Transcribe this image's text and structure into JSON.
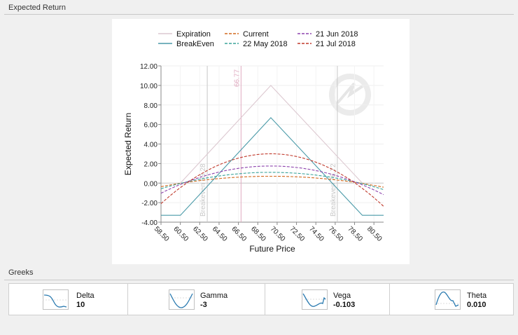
{
  "sections": {
    "expected_return": "Expected Return",
    "greeks": "Greeks"
  },
  "chart_data": {
    "type": "line",
    "xlabel": "Future Price",
    "ylabel": "Expected Return",
    "xlim": [
      58.5,
      81.5
    ],
    "ylim": [
      -4,
      12
    ],
    "x_ticks": [
      "58.50",
      "60.50",
      "62.50",
      "64.50",
      "66.50",
      "68.50",
      "70.50",
      "72.50",
      "74.50",
      "76.50",
      "78.50",
      "80.50"
    ],
    "y_ticks": [
      "12.00",
      "10.00",
      "8.00",
      "6.00",
      "4.00",
      "2.00",
      "0.00",
      "-2.00",
      "-4.00"
    ],
    "legend_position": "top",
    "series": [
      {
        "name": "Expiration",
        "color": "#dcc8d0",
        "dash": false,
        "points": [
          [
            60.5,
            0
          ],
          [
            69.85,
            10
          ],
          [
            79.3,
            0
          ]
        ]
      },
      {
        "name": "BreakEven",
        "color": "#4a9aa8",
        "dash": false,
        "points": [
          [
            58.5,
            -3.3
          ],
          [
            60.5,
            -3.3
          ],
          [
            69.85,
            6.7
          ],
          [
            79.3,
            -3.3
          ],
          [
            81.5,
            -3.3
          ]
        ]
      },
      {
        "name": "Current",
        "color": "#d2691e",
        "dash": true,
        "peak": 0.7,
        "center": 69.85,
        "width": 9.2
      },
      {
        "name": "22 May 2018",
        "color": "#3aa39a",
        "dash": true,
        "peak": 1.1,
        "center": 69.85,
        "width": 9.2
      },
      {
        "name": "21 Jun 2018",
        "color": "#8e44ad",
        "dash": true,
        "peak": 1.75,
        "center": 69.85,
        "width": 9.0
      },
      {
        "name": "21 Jul 2018",
        "color": "#c0392b",
        "dash": true,
        "peak": 3.0,
        "center": 69.85,
        "width": 8.7
      }
    ],
    "annotations": [
      {
        "label": "66.77",
        "x": 66.77,
        "color": "#e0aac0"
      },
      {
        "label": "Breakeven 63.28",
        "x": 63.28,
        "color": "#c8c8c8"
      },
      {
        "label": "Breakeven 76.72",
        "x": 76.72,
        "color": "#c8c8c8"
      }
    ]
  },
  "greeks": [
    {
      "name": "Delta",
      "value": "10"
    },
    {
      "name": "Gamma",
      "value": "-3"
    },
    {
      "name": "Vega",
      "value": "-0.103"
    },
    {
      "name": "Theta",
      "value": "0.010"
    }
  ]
}
